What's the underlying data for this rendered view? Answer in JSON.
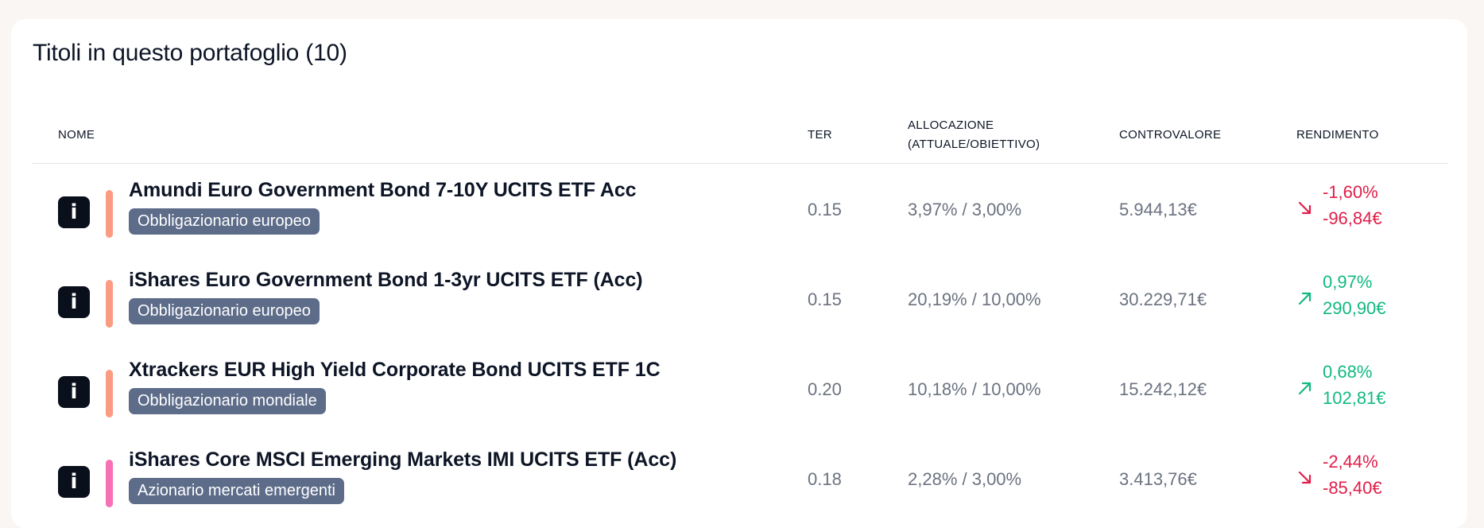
{
  "card": {
    "title": "Titoli in questo portafoglio (10)"
  },
  "columns": {
    "name": "NOME",
    "ter": "TER",
    "alloc_line1": "ALLOCAZIONE",
    "alloc_line2": "(ATTUALE/OBIETTIVO)",
    "value": "CONTROVALORE",
    "return": "RENDIMENTO"
  },
  "colors": {
    "bond_bar": "#fb9b81",
    "emerging_bar": "#f772b4",
    "negative": "#e11d48",
    "positive": "#10b981",
    "tag_bg": "#5d6c89"
  },
  "rows": [
    {
      "info_icon": "i",
      "name": "Amundi Euro Government Bond 7-10Y UCITS ETF Acc",
      "tag": "Obbligazionario europeo",
      "bar_color": "#fb9b81",
      "ter": "0.15",
      "allocation": "3,97% / 3,00%",
      "value": "5.944,13€",
      "return_pct": "-1,60%",
      "return_abs": "-96,84€",
      "direction": "down",
      "arrow_icon": "arrow-down-right-icon"
    },
    {
      "info_icon": "i",
      "name": "iShares Euro Government Bond 1-3yr UCITS ETF (Acc)",
      "tag": "Obbligazionario europeo",
      "bar_color": "#fb9b81",
      "ter": "0.15",
      "allocation": "20,19% / 10,00%",
      "value": "30.229,71€",
      "return_pct": "0,97%",
      "return_abs": "290,90€",
      "direction": "up",
      "arrow_icon": "arrow-up-right-icon"
    },
    {
      "info_icon": "i",
      "name": "Xtrackers EUR High Yield Corporate Bond UCITS ETF 1C",
      "tag": "Obbligazionario mondiale",
      "bar_color": "#fb9b81",
      "ter": "0.20",
      "allocation": "10,18% / 10,00%",
      "value": "15.242,12€",
      "return_pct": "0,68%",
      "return_abs": "102,81€",
      "direction": "up",
      "arrow_icon": "arrow-up-right-icon"
    },
    {
      "info_icon": "i",
      "name": "iShares Core MSCI Emerging Markets IMI UCITS ETF (Acc)",
      "tag": "Azionario mercati emergenti",
      "bar_color": "#f772b4",
      "ter": "0.18",
      "allocation": "2,28% / 3,00%",
      "value": "3.413,76€",
      "return_pct": "-2,44%",
      "return_abs": "-85,40€",
      "direction": "down",
      "arrow_icon": "arrow-down-right-icon"
    }
  ]
}
